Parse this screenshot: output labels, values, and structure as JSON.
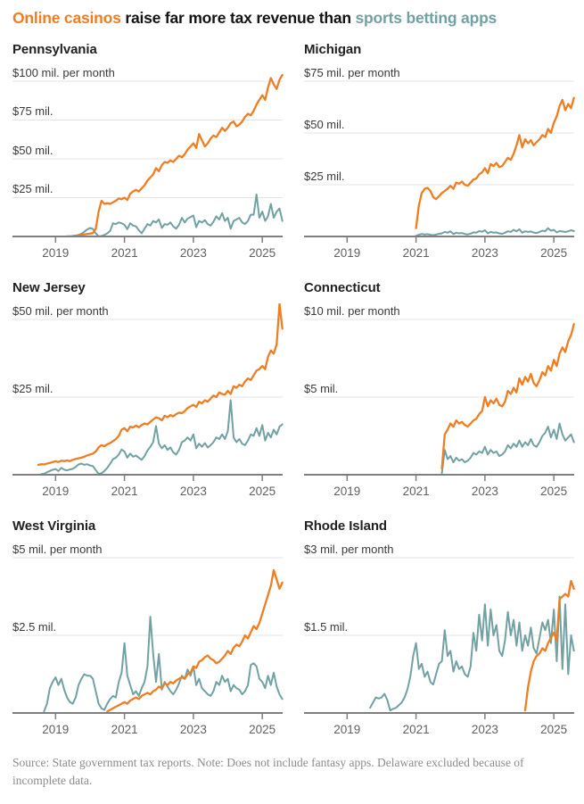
{
  "title": {
    "highlight_casino": "Online casinos",
    "middle": " raise far more tax revenue than ",
    "highlight_sports": "sports betting apps"
  },
  "colors": {
    "casino": "#ef7e23",
    "sports": "#72a1a3",
    "gridline": "#e4e4e4",
    "axis": "#7f7f7f",
    "year_label": "#606060",
    "y_label": "#3a3a3a",
    "headline_text": "#141414"
  },
  "footer": {
    "source_note": "Source: State government tax reports.  Note: Does not include fantasy apps. Delaware excluded because of incomplete data."
  },
  "chart_data": {
    "type": "line",
    "unit": "tax revenue, $ millions per month",
    "x_domain": {
      "start_month": "2018-07",
      "end_month": "2025-08",
      "months_total": 86,
      "tick_month_index": [
        6,
        30,
        54,
        78
      ],
      "tick_labels": [
        "2019",
        "2021",
        "2023",
        "2025"
      ]
    },
    "legend": {
      "casino": "Online casinos",
      "sports": "Sports betting apps"
    },
    "charts": [
      {
        "state": "Pennsylvania",
        "y_top_value": 100,
        "gridlines": [
          {
            "value": 100,
            "label": "$100 mil. per month"
          },
          {
            "value": 75,
            "label": "$75 mil."
          },
          {
            "value": 50,
            "label": "$50 mil."
          },
          {
            "value": 25,
            "label": "$25 mil."
          }
        ],
        "casino": {
          "start": 12,
          "values": [
            0.3,
            0.5,
            0.8,
            1.0,
            1.3,
            1.6,
            1.9,
            2.2,
            5,
            16,
            23,
            21,
            21.5,
            21,
            22,
            23,
            24.5,
            24,
            25,
            23.5,
            27.5,
            29,
            30,
            29,
            31,
            33,
            36,
            38,
            40,
            44,
            42,
            46,
            48,
            47.5,
            49,
            48,
            50,
            52,
            51,
            53,
            56,
            58,
            60,
            57,
            66,
            62,
            58,
            60,
            63,
            65,
            64,
            67,
            70,
            68,
            70,
            73,
            74,
            71,
            72,
            74,
            77,
            79,
            78,
            81,
            85,
            88,
            91,
            88,
            96,
            102,
            98,
            95,
            101,
            104
          ]
        },
        "sports": {
          "start": 10,
          "values": [
            0.1,
            0.2,
            0.3,
            0.5,
            1,
            1.8,
            3,
            4.5,
            5.5,
            4.8,
            2,
            0.2,
            0.3,
            1,
            2,
            3.5,
            8.5,
            8,
            9,
            8.5,
            7.5,
            4.7,
            8.5,
            7,
            6.5,
            4,
            2,
            5,
            8,
            7,
            10,
            9,
            11,
            5.5,
            8,
            7.5,
            9,
            6.5,
            5,
            7.5,
            12,
            9,
            11.5,
            12.5,
            13.5,
            6,
            10,
            9,
            10.5,
            8,
            7,
            9.5,
            13,
            11,
            15,
            10,
            12,
            5,
            10,
            11,
            12,
            9,
            8,
            10,
            14,
            14,
            27,
            12,
            16,
            10,
            13,
            21,
            12,
            16,
            18,
            10
          ]
        }
      },
      {
        "state": "Michigan",
        "y_top_value": 75,
        "gridlines": [
          {
            "value": 75,
            "label": "$75 mil. per month"
          },
          {
            "value": 50,
            "label": "$50 mil."
          },
          {
            "value": 25,
            "label": "$25 mil."
          }
        ],
        "casino": {
          "start": 30,
          "values": [
            4,
            15,
            21,
            23,
            23.5,
            22,
            19,
            18,
            19.5,
            21,
            22,
            23,
            24.5,
            23,
            26,
            25.5,
            26.5,
            25,
            24.5,
            26,
            27.5,
            28,
            30,
            31,
            33,
            30.5,
            35,
            34,
            35.5,
            33.5,
            34,
            36,
            38,
            37,
            40,
            44,
            49,
            43,
            47,
            45,
            46.5,
            44,
            45.5,
            47,
            49,
            48,
            52,
            50,
            55,
            58,
            63,
            66,
            61,
            64,
            62,
            67
          ]
        },
        "sports": {
          "start": 30,
          "values": [
            0.3,
            0.8,
            1.2,
            0.9,
            1.1,
            0.8,
            0.6,
            0.9,
            1.3,
            1.5,
            2.2,
            1.8,
            2.5,
            1.2,
            1.8,
            1.5,
            1.7,
            1.2,
            1,
            1.4,
            2,
            1.8,
            2.6,
            2.3,
            3,
            1.5,
            2.2,
            1.8,
            2,
            1.5,
            1.3,
            1.8,
            2.5,
            2.2,
            3.2,
            2.5,
            3.5,
            1.8,
            2.5,
            2.2,
            2.4,
            1.9,
            1.7,
            2.2,
            2.8,
            2.5,
            4,
            2.8,
            3.2,
            2,
            2.6,
            2.4,
            2.2,
            2.5,
            3,
            2.6
          ]
        }
      },
      {
        "state": "New Jersey",
        "y_top_value": 50,
        "gridlines": [
          {
            "value": 50,
            "label": "$50 mil. per month"
          },
          {
            "value": 25,
            "label": "$25 mil."
          }
        ],
        "casino": {
          "start": 0,
          "values": [
            3.2,
            3.4,
            3.3,
            3.6,
            3.8,
            4.1,
            4.3,
            4.1,
            4.5,
            4.4,
            4.6,
            4.4,
            4.8,
            5.1,
            5.3,
            5.5,
            5.8,
            6.2,
            6.5,
            6.8,
            7.5,
            8.8,
            9.5,
            9.2,
            9.8,
            10.2,
            10.8,
            11.5,
            12.5,
            14.5,
            15,
            14,
            15.5,
            15.2,
            15.8,
            15.3,
            16,
            16.5,
            16.2,
            17,
            17.8,
            18.5,
            18.2,
            17.5,
            19,
            18.5,
            19.2,
            18.8,
            19.5,
            20,
            19.8,
            20.5,
            21.5,
            22,
            22.5,
            21.8,
            23.5,
            23,
            24,
            23.5,
            24.5,
            25.5,
            25,
            26.5,
            26,
            25.8,
            27,
            26,
            28.5,
            28,
            29,
            28.5,
            30,
            31,
            30.5,
            32,
            33.5,
            34,
            35,
            34,
            38,
            40,
            39,
            42,
            55,
            47
          ]
        },
        "sports": {
          "start": 1,
          "values": [
            0.2,
            0.3,
            0.8,
            1.2,
            1.6,
            1.8,
            1.2,
            2.2,
            1.6,
            1.4,
            1.7,
            1.9,
            2.5,
            3.3,
            3.6,
            3.2,
            3.4,
            3,
            2.8,
            1.5,
            0.3,
            0.5,
            1.2,
            2.2,
            3.5,
            5,
            5.5,
            6.5,
            8.1,
            7.5,
            5.5,
            6.8,
            5.8,
            6.2,
            5.5,
            4.8,
            6,
            7.8,
            9,
            10.5,
            15.7,
            10,
            8.5,
            9.5,
            8,
            8.8,
            7.2,
            6.5,
            8,
            10.5,
            11,
            12,
            11,
            13,
            8.5,
            10,
            9,
            10.2,
            8.8,
            9.5,
            10.5,
            12,
            11.5,
            13,
            11.5,
            14,
            24,
            12,
            10.5,
            11.5,
            10,
            9.5,
            11,
            13,
            12.5,
            15,
            12.5,
            16,
            11,
            13.5,
            12,
            14.5,
            13,
            15.5,
            16.2
          ]
        }
      },
      {
        "state": "Connecticut",
        "y_top_value": 10,
        "gridlines": [
          {
            "value": 10,
            "label": "$10 mil. per month"
          },
          {
            "value": 5,
            "label": "$5 mil."
          }
        ],
        "casino": {
          "start": 39,
          "values": [
            0.4,
            2.6,
            2.9,
            3.3,
            3.1,
            3.5,
            3.3,
            3.4,
            3.2,
            3.1,
            3.3,
            3.5,
            3.6,
            3.9,
            4.1,
            5,
            4.4,
            4.8,
            4.6,
            4.9,
            4.5,
            4.4,
            4.7,
            5.4,
            5.2,
            5.6,
            5.3,
            6.2,
            5.8,
            6.3,
            6,
            6.5,
            5.9,
            5.7,
            6.1,
            6.6,
            6.4,
            7,
            6.7,
            7.4,
            7,
            7.8,
            8.2,
            7.9,
            8.6,
            9,
            9.7
          ]
        },
        "sports": {
          "start": 39,
          "values": [
            0.1,
            1.6,
            1,
            1.2,
            0.8,
            1.1,
            0.9,
            1,
            0.8,
            0.9,
            1.1,
            1.4,
            1.3,
            1.5,
            1.4,
            1.8,
            1.3,
            1.6,
            1.4,
            1.5,
            1.2,
            1.3,
            1.5,
            1.9,
            1.7,
            2,
            1.8,
            2.2,
            1.8,
            2.1,
            1.9,
            2.3,
            1.9,
            1.8,
            2.1,
            2.5,
            2.7,
            3.1,
            2.4,
            2.9,
            2.3,
            3.3,
            2.6,
            2.2,
            2.4,
            2.6,
            2.1
          ]
        }
      },
      {
        "state": "West Virginia",
        "y_top_value": 5,
        "gridlines": [
          {
            "value": 5,
            "label": "$5 mil. per month"
          },
          {
            "value": 2.5,
            "label": "$2.5 mil."
          }
        ],
        "casino": {
          "start": 24,
          "values": [
            0.05,
            0.1,
            0.15,
            0.2,
            0.25,
            0.3,
            0.35,
            0.3,
            0.4,
            0.45,
            0.5,
            0.45,
            0.55,
            0.6,
            0.65,
            0.6,
            0.7,
            0.75,
            0.85,
            0.8,
            0.95,
            0.9,
            1,
            0.95,
            1.05,
            1.1,
            1.15,
            1.1,
            1.25,
            1.3,
            1.5,
            1.45,
            1.65,
            1.7,
            1.8,
            1.85,
            1.75,
            1.7,
            1.6,
            1.65,
            1.75,
            1.85,
            2,
            1.9,
            2.1,
            2.2,
            2.15,
            2.3,
            2.5,
            2.4,
            2.6,
            2.8,
            2.7,
            2.9,
            3.2,
            3.5,
            3.8,
            4.1,
            4.6,
            4.3,
            4,
            4.2
          ]
        },
        "sports": {
          "start": 2,
          "values": [
            0.05,
            0.3,
            0.8,
            1,
            1.15,
            0.9,
            1.1,
            0.75,
            0.5,
            0.35,
            0.3,
            0.5,
            0.9,
            1.1,
            1.25,
            1.2,
            1.2,
            1.1,
            0.7,
            0.3,
            0.15,
            0.1,
            0.3,
            0.45,
            0.55,
            0.5,
            1,
            1.3,
            2.25,
            1.2,
            0.9,
            0.6,
            0.7,
            0.55,
            0.8,
            1,
            1.5,
            3.1,
            1.9,
            1,
            1.9,
            0.75,
            1,
            0.85,
            0.7,
            0.6,
            0.75,
            0.95,
            1.2,
            1.1,
            1.4,
            1.2,
            1.5,
            0.9,
            1.1,
            0.8,
            0.7,
            0.6,
            0.55,
            0.7,
            1,
            0.9,
            1.2,
            1,
            1.1,
            0.7,
            0.9,
            0.8,
            0.75,
            0.6,
            0.7,
            0.9,
            1.55,
            1.6,
            1.5,
            1.1,
            1,
            0.8,
            1.2,
            0.9,
            1.3,
            0.85,
            0.6,
            0.45
          ]
        }
      },
      {
        "state": "Rhode Island",
        "y_top_value": 3,
        "gridlines": [
          {
            "value": 3,
            "label": "$3 mil. per month"
          },
          {
            "value": 1.5,
            "label": "$1.5 mil."
          }
        ],
        "casino": {
          "start": 68,
          "values": [
            0.05,
            0.5,
            0.8,
            1,
            1.1,
            1.15,
            1.25,
            1.2,
            1.35,
            1.45,
            1.55,
            1.4,
            2.2,
            2.25,
            2.3,
            2.25,
            2.55,
            2.4
          ]
        },
        "sports": {
          "start": 14,
          "values": [
            0.1,
            0.2,
            0.3,
            0.28,
            0.3,
            0.37,
            0.25,
            0.05,
            0.08,
            0.1,
            0.15,
            0.2,
            0.3,
            0.45,
            0.7,
            1.1,
            1.35,
            0.85,
            0.95,
            0.7,
            0.8,
            0.6,
            0.55,
            0.75,
            0.95,
            1,
            1.6,
            1.1,
            1.2,
            0.8,
            1,
            0.85,
            0.9,
            0.75,
            0.7,
            0.9,
            1.55,
            1.2,
            1.9,
            1.4,
            2.1,
            1.3,
            2,
            1.5,
            1.7,
            1.2,
            1.1,
            1.4,
            1.95,
            1.5,
            1.8,
            1.3,
            1.75,
            1.2,
            1.5,
            1.3,
            1.65,
            1.25,
            1.15,
            1.45,
            1.75,
            1.6,
            1.8,
            1.35,
            2,
            1,
            2.25,
            0.85,
            2.1,
            0.75,
            1.5,
            1.2
          ]
        }
      }
    ]
  }
}
